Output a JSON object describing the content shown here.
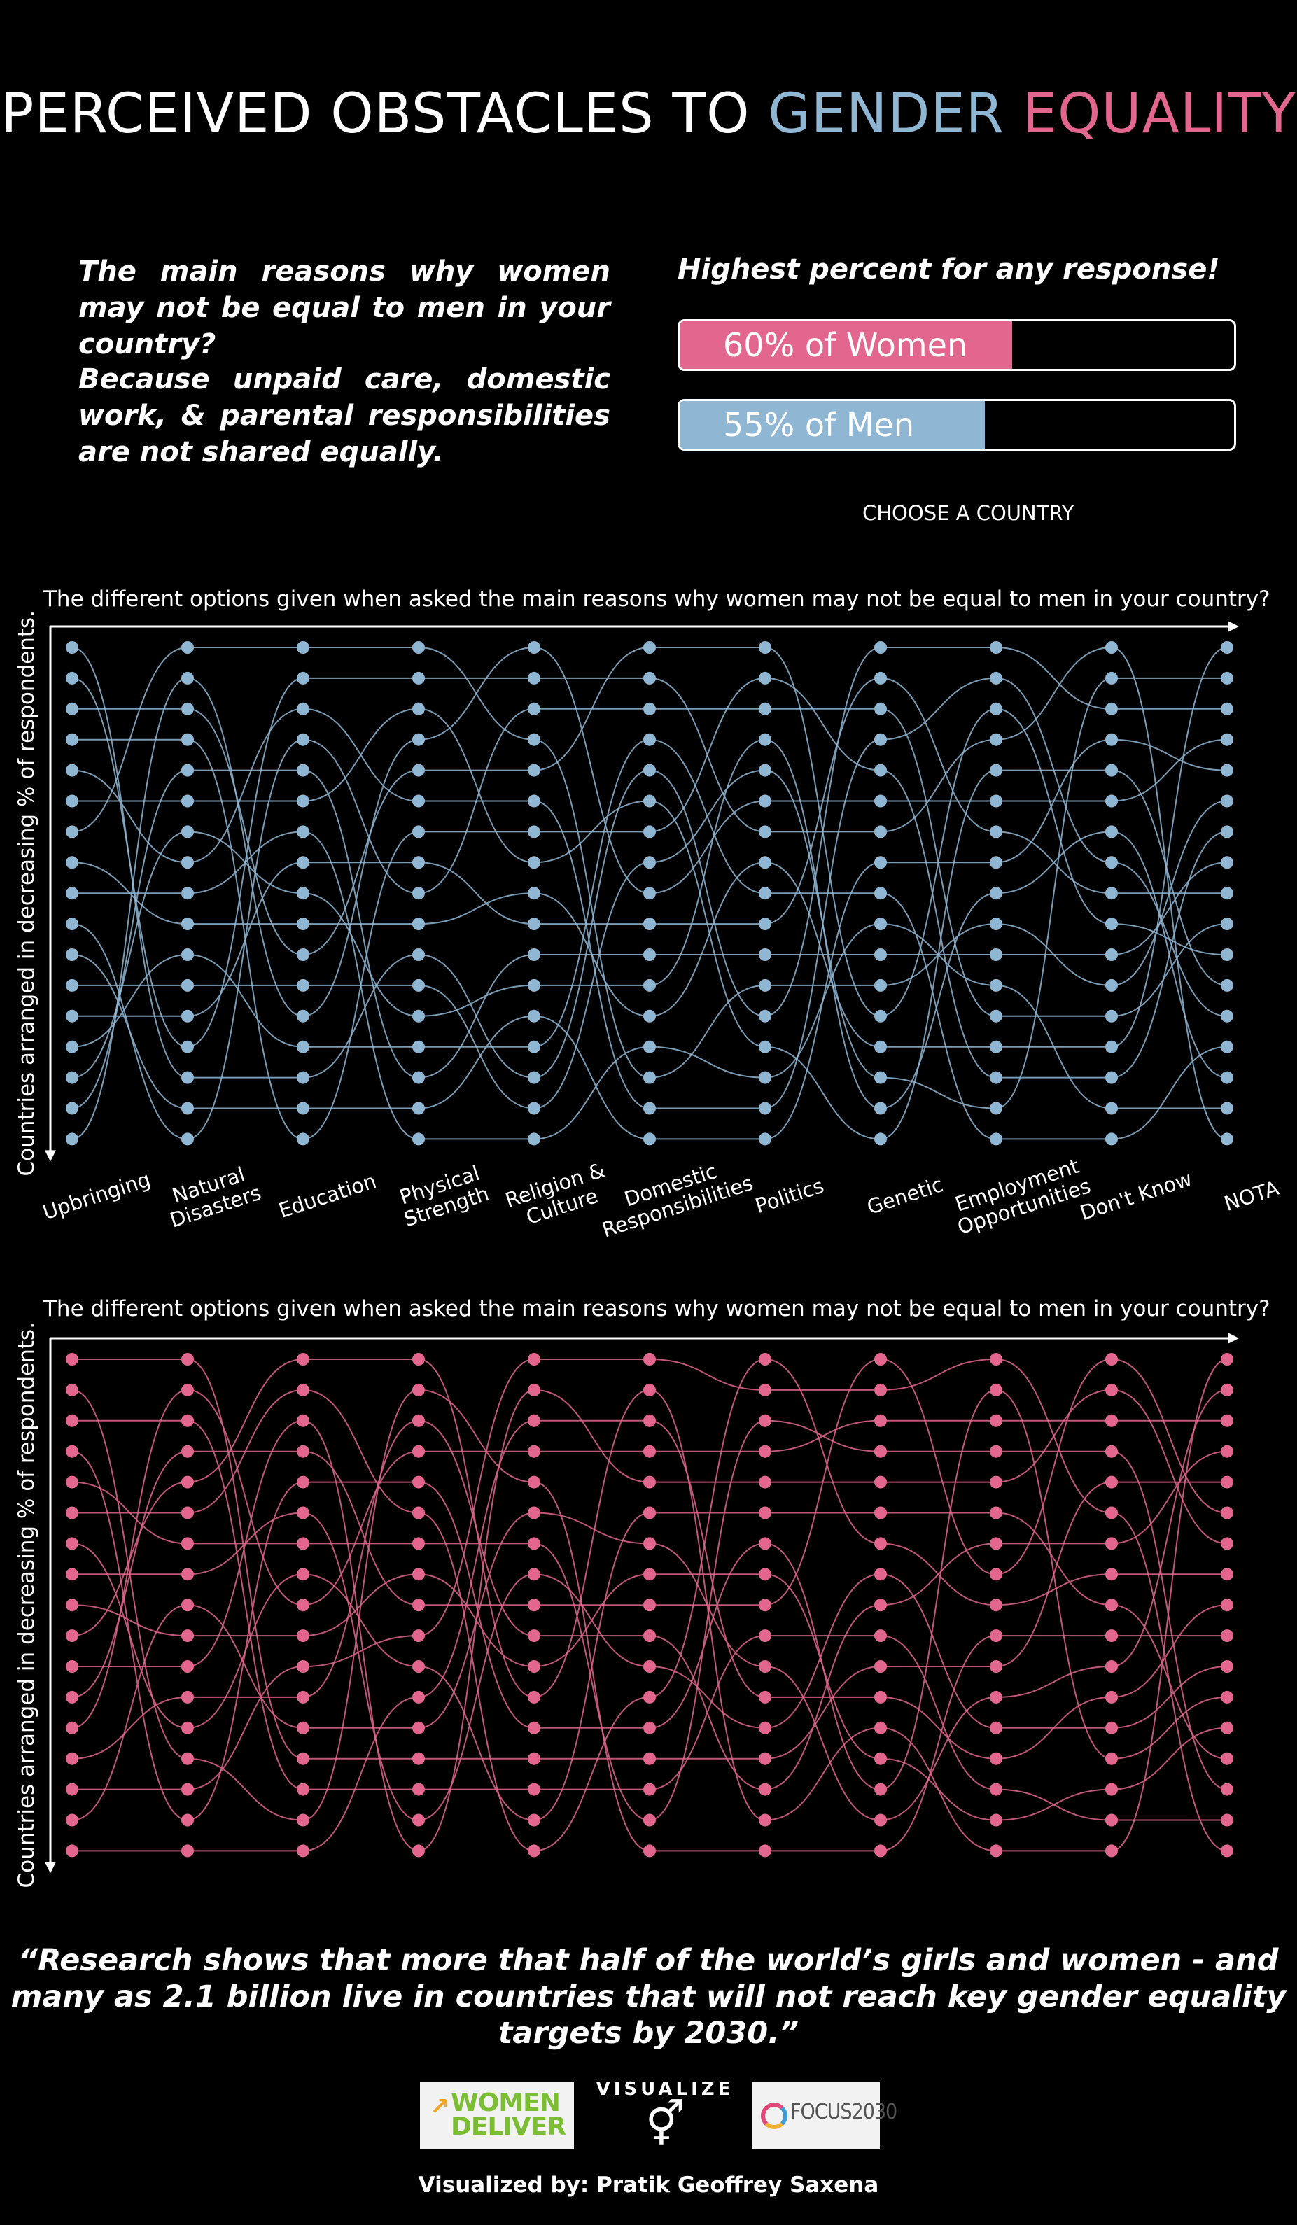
{
  "header": {
    "title_part1": "PERCEIVED OBSTACLES TO ",
    "title_part2": "GENDER",
    "title_part3": "EQUALITY"
  },
  "intro": {
    "question": "The main reasons why women may not be equal to men in your country?",
    "answer": "Because unpaid care, domestic work, & parental responsibilities are not shared equally."
  },
  "highlight": {
    "label": "Highest percent for any response!",
    "women_text": "60% of Women",
    "women_pct": 60,
    "men_text": "55% of Men",
    "men_pct": 55
  },
  "controls": {
    "choose_country": "CHOOSE A COUNTRY"
  },
  "colors": {
    "men": "#8fb6d3",
    "women": "#e2668d",
    "bar_women": "#e2668d",
    "bar_men": "#8fb6d3"
  },
  "chart_data": [
    {
      "type": "bump",
      "title": "The different options given when asked the main reasons why women may not be equal to men in your country?",
      "ylabel": "Countries arranged in decreasing % of respondents.",
      "categories": [
        "Upbringing",
        "Natural Disasters",
        "Education",
        "Physical Strength",
        "Religion & Culture",
        "Domestic Responsibilities",
        "Politics",
        "Genetic",
        "Employment Opportunities",
        "Don't Know",
        "NOTA"
      ],
      "category_lines": [
        [
          "Upbringing"
        ],
        [
          "Natural",
          "Disasters"
        ],
        [
          "Education"
        ],
        [
          "Physical",
          "Strength"
        ],
        [
          "Religion &",
          "Culture"
        ],
        [
          "Domestic",
          "Responsibilities"
        ],
        [
          "Politics"
        ],
        [
          "Genetic"
        ],
        [
          "Employment",
          "Opportunities"
        ],
        [
          "Don't Know"
        ],
        [
          "NOTA"
        ]
      ],
      "countries_count": 17,
      "series_color": "#8fb6d3",
      "seed": 7
    },
    {
      "type": "bump",
      "title": "The different options given when asked the main reasons why women may not be equal to men in your country?",
      "ylabel": "Countries arranged in decreasing % of respondents.",
      "categories": [
        "Upbringing",
        "Natural Disasters",
        "Education",
        "Physical Strength",
        "Religion & Culture",
        "Domestic Responsibilities",
        "Politics",
        "Genetic",
        "Employment Opportunities",
        "Don't Know",
        "NOTA"
      ],
      "countries_count": 17,
      "series_color": "#e2668d",
      "seed": 23
    }
  ],
  "quote": "“Research shows that more that half of the world’s girls and women - and many as 2.1 billion live in countries that will not reach key gender equality targets by 2030.”",
  "logos": {
    "women_deliver_line1": "WOMEN",
    "women_deliver_line2": "DELIVER",
    "visualize": "VISUALIZE",
    "visualize_icon": "⚥",
    "focus": "FOCUS2030"
  },
  "credit": "Visualized by: Pratik Geoffrey Saxena"
}
